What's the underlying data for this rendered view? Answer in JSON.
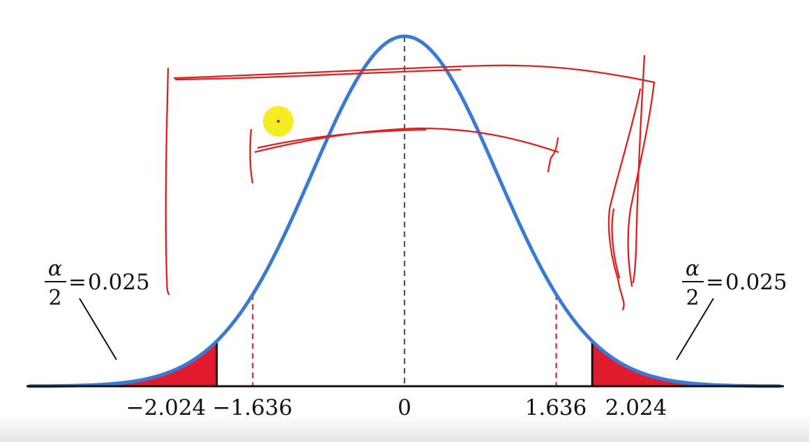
{
  "distribution": {
    "mean": 0,
    "curve_color": "#3a7ad2",
    "tail_color": "#e11b2e"
  },
  "critical_values": {
    "outer": [
      -2.024,
      2.024
    ],
    "inner": [
      -1.636,
      1.636
    ]
  },
  "tick_labels": {
    "neg_outer": "−2.024",
    "neg_inner": "−1.636",
    "center": "0",
    "pos_inner": "1.636",
    "pos_outer": "2.024"
  },
  "tail_annotation": {
    "numerator": "α",
    "denominator": "2",
    "equals": "=",
    "value": "0.025"
  },
  "annotation_color": "#e0201f",
  "cursor_highlight_color": "#f5ea14"
}
